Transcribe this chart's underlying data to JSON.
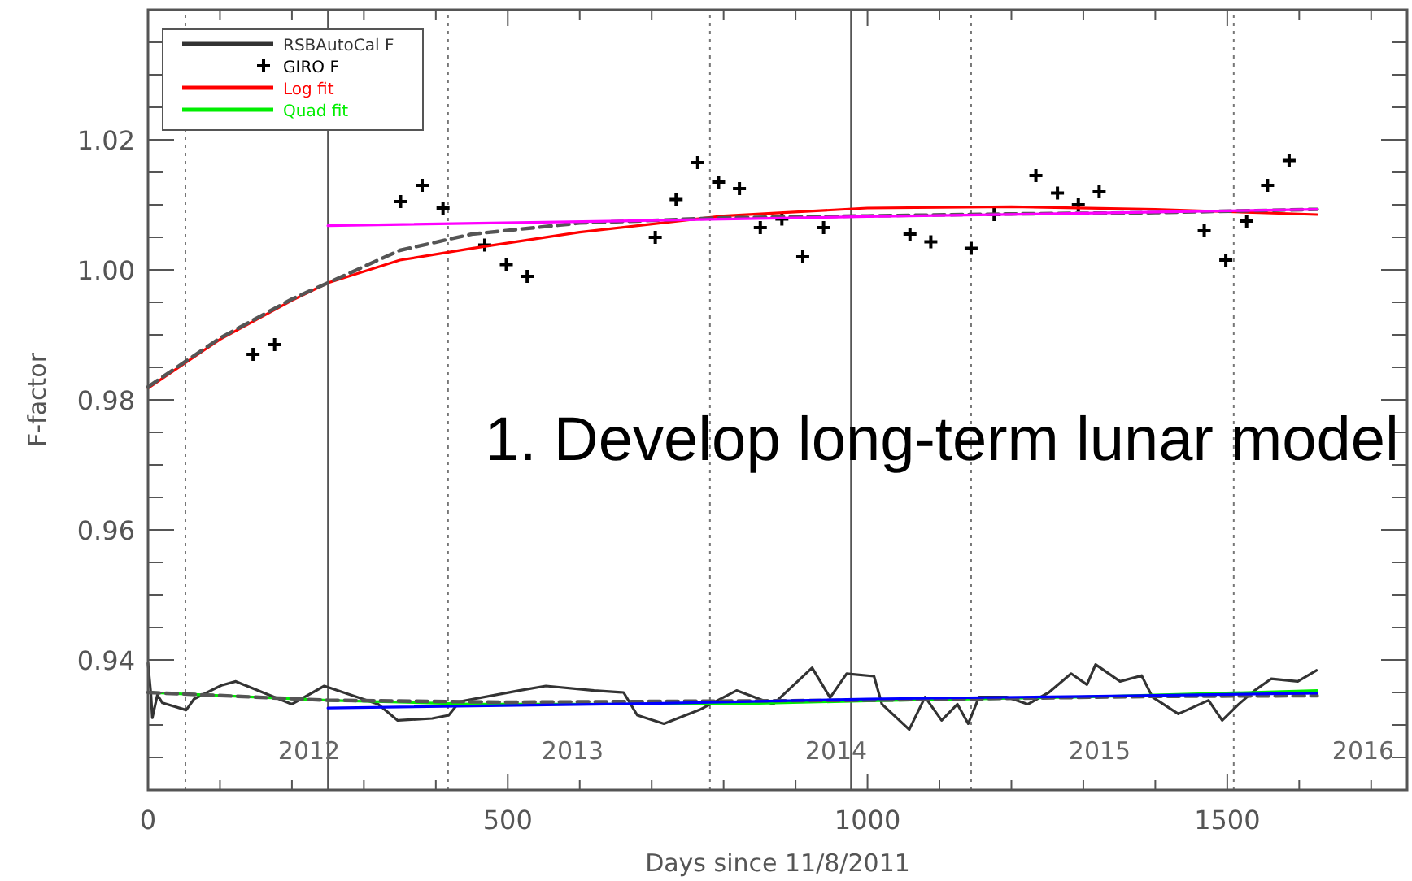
{
  "chart_data": {
    "type": "line",
    "xlabel": "Days since 11/8/2011",
    "ylabel": "F-factor",
    "xlim": [
      0,
      1750
    ],
    "ylim": [
      0.92,
      1.04
    ],
    "xticks": [
      0,
      {
        "value": 100,
        "label": null
      },
      {
        "value": 200,
        "label": null
      },
      {
        "value": 300,
        "label": null
      },
      {
        "value": 400,
        "label": null
      },
      500,
      {
        "value": 600,
        "label": null
      },
      {
        "value": 700,
        "label": null
      },
      {
        "value": 800,
        "label": null
      },
      {
        "value": 900,
        "label": null
      },
      1000,
      {
        "value": 1100,
        "label": null
      },
      {
        "value": 1200,
        "label": null
      },
      {
        "value": 1300,
        "label": null
      },
      {
        "value": 1400,
        "label": null
      },
      1500,
      {
        "value": 1600,
        "label": null
      },
      {
        "value": 1700,
        "label": null
      }
    ],
    "yticks": [
      {
        "value": 0.92,
        "label": null
      },
      {
        "value": 0.925,
        "label": null
      },
      {
        "value": 0.93,
        "label": null
      },
      {
        "value": 0.935,
        "label": null
      },
      0.94,
      {
        "value": 0.945,
        "label": null
      },
      {
        "value": 0.95,
        "label": null
      },
      {
        "value": 0.955,
        "label": null
      },
      0.96,
      {
        "value": 0.965,
        "label": null
      },
      {
        "value": 0.97,
        "label": null
      },
      {
        "value": 0.975,
        "label": null
      },
      0.98,
      {
        "value": 0.985,
        "label": null
      },
      {
        "value": 0.99,
        "label": null
      },
      {
        "value": 0.995,
        "label": null
      },
      {
        "value": 1,
        "label": "1.00"
      },
      {
        "value": 1.005,
        "label": null
      },
      {
        "value": 1.01,
        "label": null
      },
      {
        "value": 1.015,
        "label": null
      },
      1.02,
      {
        "value": 1.025,
        "label": null
      },
      {
        "value": 1.03,
        "label": null
      },
      {
        "value": 1.035,
        "label": null
      },
      {
        "value": 1.04,
        "label": null
      }
    ],
    "grid": false,
    "legend": "top left",
    "series": [
      {
        "name": "RSBAutoCal F",
        "color": "#333333",
        "x": [
          0,
          4,
          6,
          13,
          20,
          53,
          64,
          102,
          122,
          200,
          245,
          320,
          347,
          395,
          418,
          433,
          516,
          553,
          620,
          661,
          680,
          717,
          766,
          818,
          869,
          923,
          948,
          971,
          1009,
          1020,
          1058,
          1080,
          1103,
          1125,
          1140,
          1155,
          1193,
          1223,
          1252,
          1283,
          1305,
          1317,
          1351,
          1381,
          1396,
          1432,
          1474,
          1493,
          1516,
          1538,
          1561,
          1598,
          1624
        ],
        "values": [
          0.9395,
          0.9348,
          0.9311,
          0.9346,
          0.9334,
          0.9323,
          0.934,
          0.9361,
          0.9367,
          0.9332,
          0.936,
          0.9332,
          0.9307,
          0.931,
          0.9315,
          0.9336,
          0.9353,
          0.936,
          0.9353,
          0.935,
          0.9315,
          0.9302,
          0.9323,
          0.9353,
          0.9332,
          0.9388,
          0.9342,
          0.9379,
          0.9375,
          0.9332,
          0.9293,
          0.9343,
          0.9307,
          0.9332,
          0.9302,
          0.9343,
          0.9343,
          0.9332,
          0.935,
          0.9379,
          0.9362,
          0.9393,
          0.9367,
          0.9376,
          0.9343,
          0.9317,
          0.9338,
          0.9307,
          0.9332,
          0.9353,
          0.9371,
          0.9367,
          0.9384
        ]
      },
      {
        "name": "GIRO F",
        "type": "scatter",
        "color": "#000000",
        "marker": "cross",
        "x": [
          146,
          176,
          351,
          381,
          410,
          468,
          498,
          527,
          705,
          734,
          764,
          793,
          822,
          851,
          881,
          910,
          939,
          1059,
          1088,
          1144,
          1176,
          1234,
          1264,
          1293,
          1322,
          1468,
          1498,
          1527,
          1556,
          1586
        ],
        "values": [
          0.987,
          0.9885,
          1.0105,
          1.013,
          1.0095,
          1.0038,
          1.0008,
          0.999,
          1.005,
          1.0108,
          1.0165,
          1.0135,
          1.0125,
          1.0065,
          1.0078,
          1.002,
          1.0065,
          1.0055,
          1.0043,
          1.0033,
          1.0085,
          1.0145,
          1.0118,
          1.01,
          1.012,
          1.006,
          1.0015,
          1.0075,
          1.013,
          1.0168
        ]
      },
      {
        "name": "Log fit",
        "color": "#ff0000",
        "x": [
          0,
          100,
          200,
          250,
          350,
          450,
          600,
          800,
          1000,
          1200,
          1400,
          1625
        ],
        "values": [
          0.9818,
          0.9893,
          0.9953,
          0.998,
          1.0015,
          1.0033,
          1.0058,
          1.0083,
          1.0095,
          1.0097,
          1.0093,
          1.0085
        ]
      },
      {
        "name": "Quad fit",
        "color": "#00ee00",
        "x": [
          0,
          250,
          450,
          800,
          1000,
          1300,
          1625
        ],
        "values": [
          0.935,
          0.9338,
          0.9332,
          0.9332,
          0.9337,
          0.9343,
          0.9353
        ]
      },
      {
        "color": "#555555",
        "line_style": "dashed",
        "x": [
          0,
          100,
          200,
          250,
          350,
          450,
          600,
          800,
          1000,
          1200,
          1400,
          1625
        ],
        "values": [
          0.982,
          0.9895,
          0.9955,
          0.998,
          1.003,
          1.0055,
          1.0072,
          1.008,
          1.0083,
          1.0086,
          1.0088,
          1.0093
        ]
      },
      {
        "color": "#ff00ff",
        "x": [
          250,
          700,
          1000,
          1300,
          1625
        ],
        "values": [
          1.0068,
          1.0076,
          1.0082,
          1.0087,
          1.0093
        ]
      },
      {
        "color": "#555555",
        "line_style": "dashed",
        "x": [
          0,
          250,
          500,
          1000,
          1400,
          1625
        ],
        "values": [
          0.935,
          0.9338,
          0.9335,
          0.9338,
          0.9344,
          0.9345
        ]
      },
      {
        "color": "#0000ff",
        "x": [
          250,
          700,
          1000,
          1300,
          1625
        ],
        "values": [
          0.9326,
          0.9333,
          0.934,
          0.9344,
          0.9349
        ]
      }
    ],
    "ref_lines": [
      {
        "axis": "x",
        "value": 250,
        "color": "#555555",
        "line_style": "solid"
      },
      {
        "axis": "x",
        "value": 977,
        "color": "#555555",
        "line_style": "solid"
      },
      {
        "axis": "x",
        "value": 52,
        "color": "#777777",
        "line_style": "dotted"
      },
      {
        "axis": "x",
        "value": 417,
        "color": "#777777",
        "line_style": "dotted"
      },
      {
        "axis": "x",
        "value": 781,
        "color": "#777777",
        "line_style": "dotted"
      },
      {
        "axis": "x",
        "value": 1144,
        "color": "#777777",
        "line_style": "dotted"
      },
      {
        "axis": "x",
        "value": 1509,
        "color": "#777777",
        "line_style": "dotted"
      }
    ],
    "annotations": [
      "2012",
      "2013",
      "2014",
      "2015",
      "2016",
      "1. Develop long-term lunar model"
    ]
  }
}
